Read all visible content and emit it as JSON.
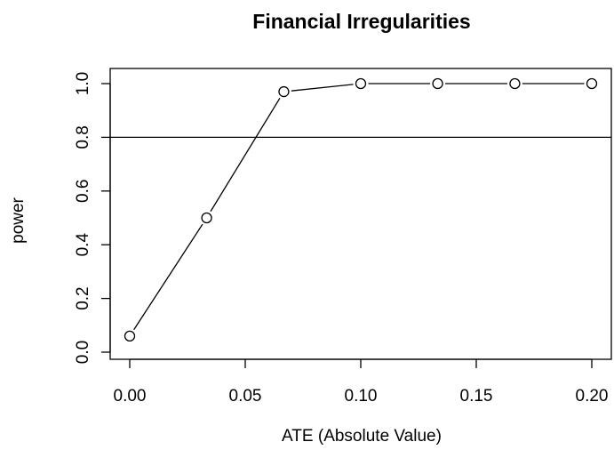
{
  "chart_data": {
    "type": "line",
    "title": "Financial Irregularities",
    "xlabel": "ATE (Absolute Value)",
    "ylabel": "power",
    "xlim": [
      0,
      0.2
    ],
    "ylim": [
      0,
      1
    ],
    "grid": false,
    "x_ticks": [
      "0.00",
      "0.05",
      "0.10",
      "0.15",
      "0.20"
    ],
    "y_ticks": [
      "0.0",
      "0.2",
      "0.4",
      "0.6",
      "0.8",
      "1.0"
    ],
    "x_tick_values": [
      0.0,
      0.05,
      0.1,
      0.15,
      0.2
    ],
    "y_tick_values": [
      0.0,
      0.2,
      0.4,
      0.6,
      0.8,
      1.0
    ],
    "reference_line": {
      "y": 0.8
    },
    "series": [
      {
        "x": [
          0.0,
          0.0333,
          0.0667,
          0.1,
          0.1333,
          0.1667,
          0.2
        ],
        "values": [
          0.06,
          0.5,
          0.97,
          1.0,
          1.0,
          1.0,
          1.0
        ]
      }
    ]
  }
}
